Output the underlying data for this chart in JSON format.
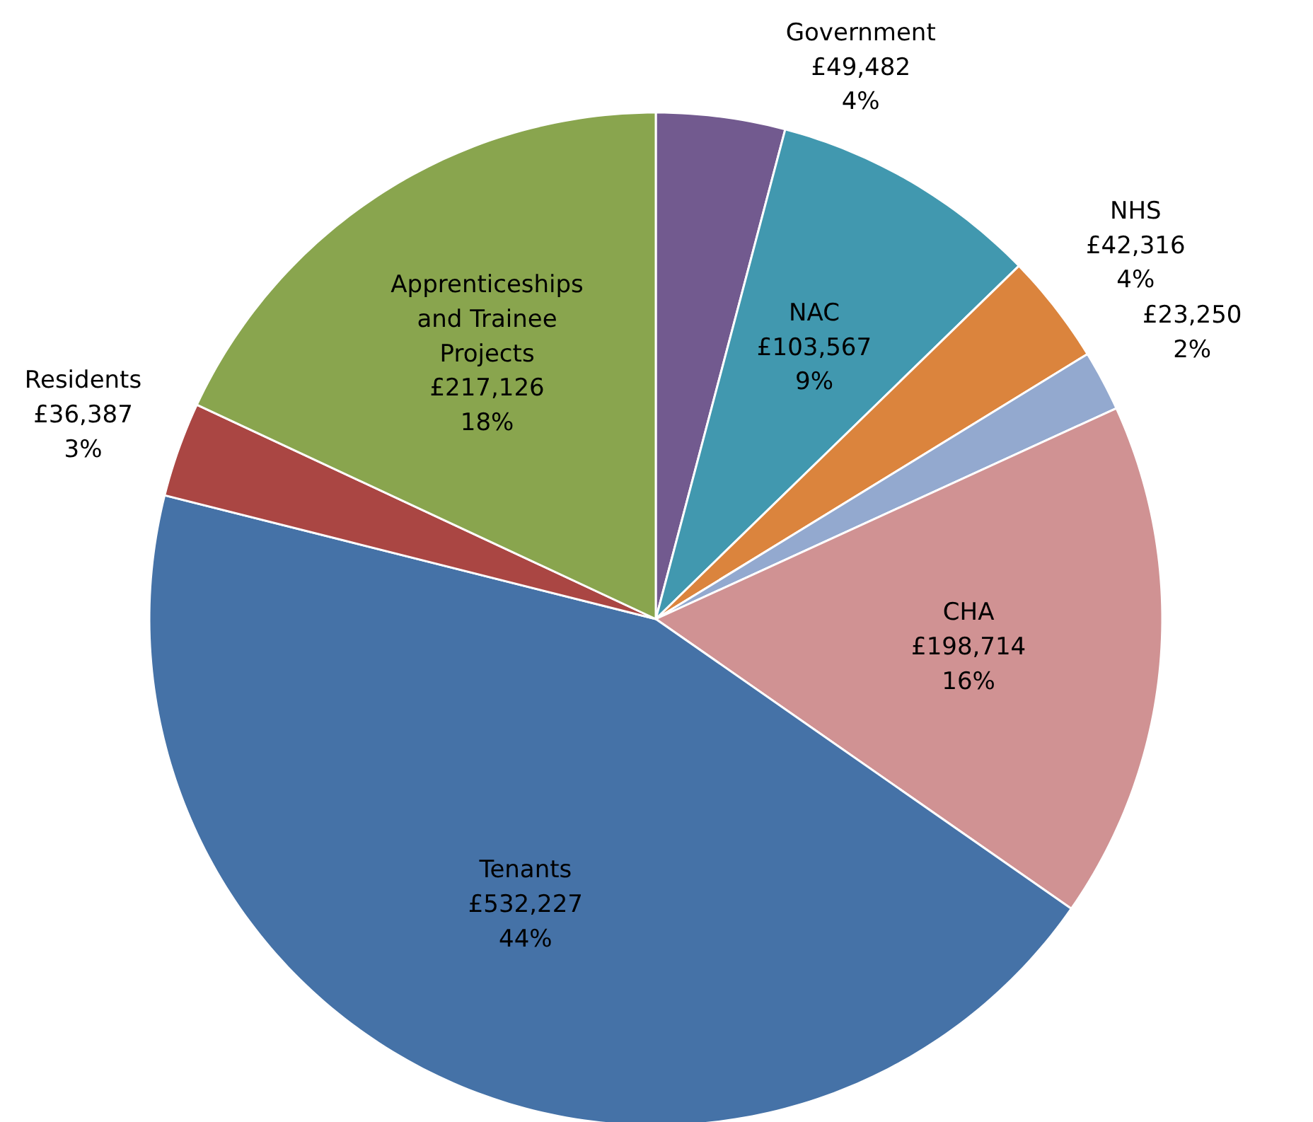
{
  "chart_data": {
    "type": "pie",
    "categories": [
      "Government",
      "NAC",
      "NHS",
      null,
      "CHA",
      "Tenants",
      "Residents",
      "Apprenticeships and Trainee Projects"
    ],
    "values": [
      49482,
      103567,
      42316,
      23250,
      198714,
      532227,
      36387,
      217126
    ],
    "colors": [
      "#725a8f",
      "#4198af",
      "#db843d",
      "#93a9cf",
      "#d09293",
      "#4572a7",
      "#aa4643",
      "#89a54e"
    ],
    "value_labels": [
      "£49,482\n4%",
      "£103,567\n9%",
      "£42,316\n4%",
      "£23,250\n2%",
      "£198,714\n16%",
      "£532,227\n44%",
      "£36,387\n3%",
      "£217,126\n18%"
    ]
  }
}
